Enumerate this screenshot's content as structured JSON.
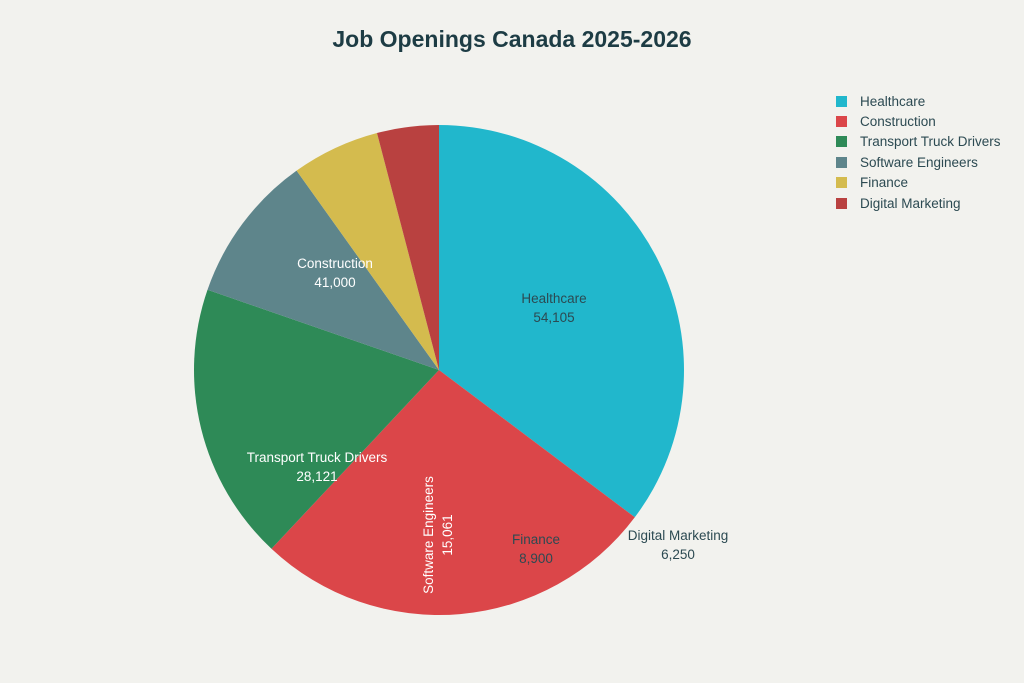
{
  "chart_data": {
    "type": "pie",
    "title": "Job Openings Canada 2025-2026",
    "categories": [
      "Healthcare",
      "Construction",
      "Transport Truck Drivers",
      "Software Engineers",
      "Finance",
      "Digital Marketing"
    ],
    "values": [
      54105,
      41000,
      28121,
      15061,
      8900,
      6250
    ],
    "value_labels": [
      "54,105",
      "41,000",
      "28,121",
      "15,061",
      "8,900",
      "6,250"
    ],
    "colors": [
      "#21b7cc",
      "#db4649",
      "#2e8a57",
      "#5e858b",
      "#d4bb4e",
      "#b94140"
    ],
    "label_colors": [
      "#2c4a52",
      "#ffffff",
      "#ffffff",
      "#ffffff",
      "#2c4a52",
      "#2c4a52"
    ],
    "start_angle_deg": 0,
    "direction": "clockwise",
    "legend_position": "top-right"
  },
  "legend": {
    "items": [
      {
        "label": "Healthcare",
        "color": "#21b7cc"
      },
      {
        "label": "Construction",
        "color": "#db4649"
      },
      {
        "label": "Transport Truck Drivers",
        "color": "#2e8a57"
      },
      {
        "label": "Software Engineers",
        "color": "#5e858b"
      },
      {
        "label": "Finance",
        "color": "#d4bb4e"
      },
      {
        "label": "Digital Marketing",
        "color": "#b94140"
      }
    ]
  }
}
